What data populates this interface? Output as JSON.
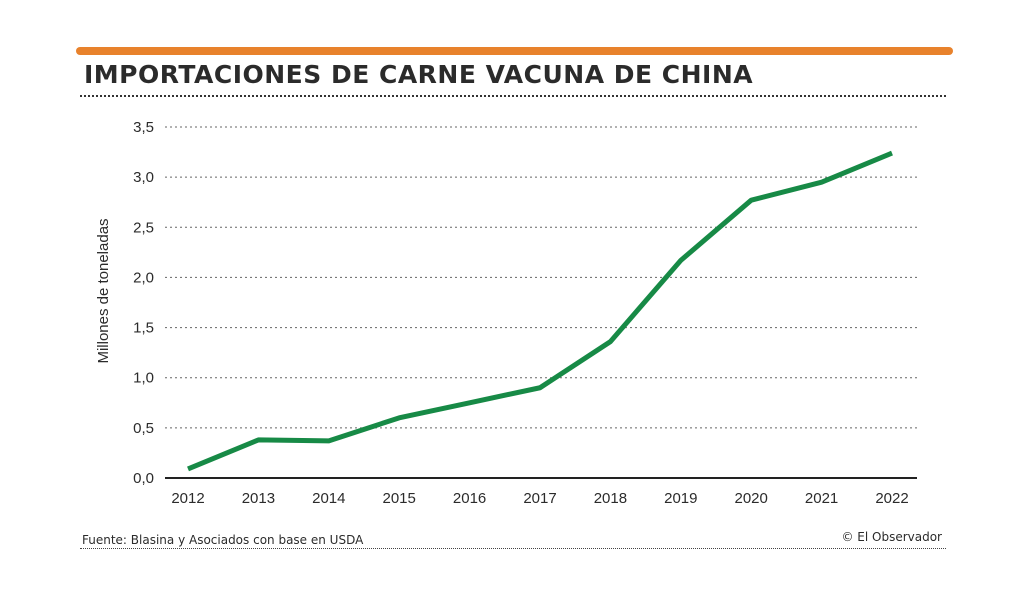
{
  "title": "IMPORTACIONES DE CARNE VACUNA DE CHINA",
  "source": "Fuente: Blasina y Asociados con base en USDA",
  "credit": "© El Observador",
  "colors": {
    "accent_rule": "#e8822c",
    "line": "#178a46",
    "gridline": "#666666"
  },
  "chart_data": {
    "type": "line",
    "title": "IMPORTACIONES DE CARNE VACUNA DE CHINA",
    "xlabel": "",
    "ylabel": "Millones de toneladas",
    "x": [
      "2012",
      "2013",
      "2014",
      "2015",
      "2016",
      "2017",
      "2018",
      "2019",
      "2020",
      "2021",
      "2022"
    ],
    "series": [
      {
        "values": [
          0.09,
          0.38,
          0.37,
          0.6,
          0.75,
          0.9,
          1.36,
          2.17,
          2.77,
          2.95,
          3.24
        ]
      }
    ],
    "ylim": [
      0,
      3.5
    ],
    "yticks": [
      "0,0",
      "0,5",
      "1,0",
      "1,5",
      "2,0",
      "2,5",
      "3,0",
      "3,5"
    ],
    "grid": true
  }
}
